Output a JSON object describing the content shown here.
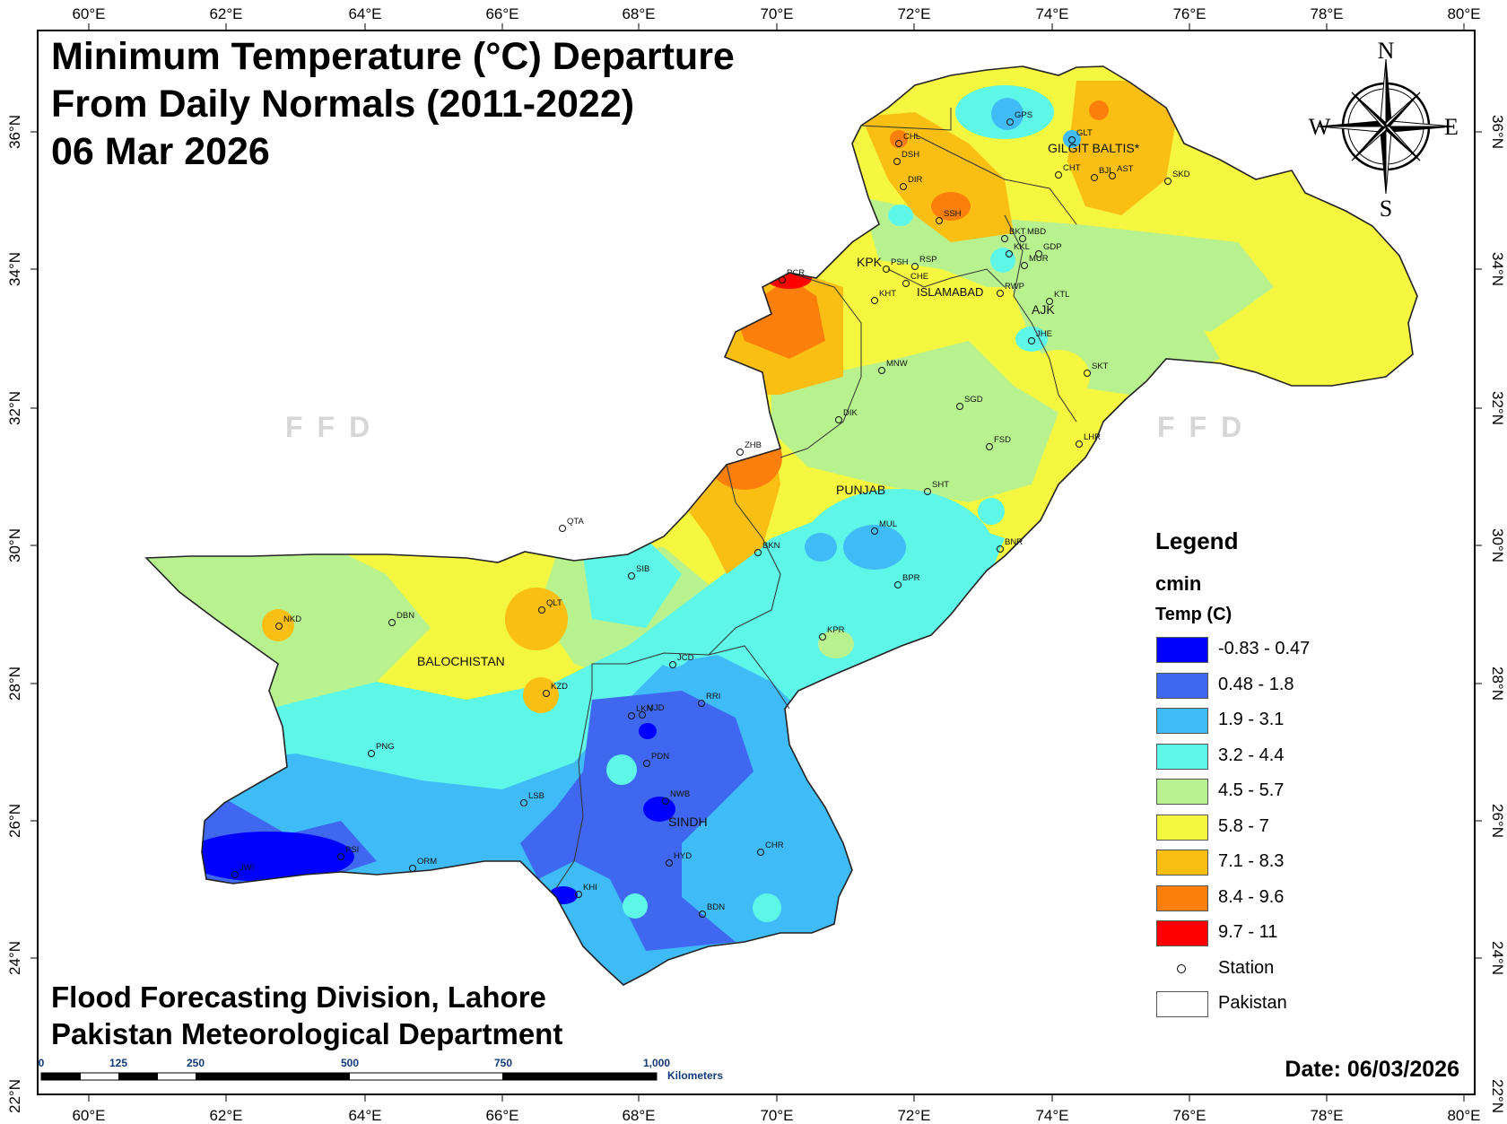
{
  "title": {
    "line1": "Minimum Temperature (°C) Departure",
    "line2": "From Daily Normals (2011-2022)",
    "line3": "06 Mar 2026"
  },
  "credits": {
    "line1": "Flood Forecasting Division, Lahore",
    "line2": "Pakistan Meteorological Department"
  },
  "date_label": "Date: 06/03/2026",
  "watermark": "FFD",
  "compass": {
    "n": "N",
    "s": "S",
    "e": "E",
    "w": "W"
  },
  "graticule": {
    "lon_labels": [
      "60°E",
      "62°E",
      "64°E",
      "66°E",
      "68°E",
      "70°E",
      "72°E",
      "74°E",
      "76°E",
      "78°E",
      "80°E"
    ],
    "lat_labels": [
      "24°N",
      "26°N",
      "28°N",
      "30°N",
      "32°N",
      "34°N",
      "36°N"
    ],
    "bottom_left_lat": "22°N",
    "right_extra_lat": "22°N"
  },
  "scale_bar": {
    "ticks": [
      "0",
      "125",
      "250",
      "500",
      "750",
      "1,000"
    ],
    "unit": "Kilometers"
  },
  "legend": {
    "title": "Legend",
    "layer": "cmin",
    "field": "Temp (C)",
    "classes": [
      {
        "label": "-0.83 - 0.47",
        "color": "#0000ff"
      },
      {
        "label": "0.48 - 1.8",
        "color": "#3f67f0"
      },
      {
        "label": "1.9 - 3.1",
        "color": "#3fbcf7"
      },
      {
        "label": "3.2 - 4.4",
        "color": "#5ef6e6"
      },
      {
        "label": "4.5 - 5.7",
        "color": "#b7f28f"
      },
      {
        "label": "5.8 - 7",
        "color": "#f4f63f"
      },
      {
        "label": "7.1 - 8.3",
        "color": "#fbbf14"
      },
      {
        "label": "8.4 - 9.6",
        "color": "#fb7f0a"
      },
      {
        "label": "9.7 - 11",
        "color": "#ff0000"
      }
    ],
    "station_label": "Station",
    "boundary_label": "Pakistan"
  },
  "regions": [
    "KPK",
    "ISLAMABAD",
    "AJK",
    "GILGIT BALTIS*",
    "PUNJAB",
    "BALOCHISTAN",
    "SINDH"
  ],
  "stations": [
    "CHL",
    "DSH",
    "DIR",
    "SSH",
    "GPS",
    "GLT",
    "CHT",
    "BJI",
    "AST",
    "SKD",
    "BKT",
    "MBD",
    "KKL",
    "GDP",
    "MUR",
    "PSH",
    "RSP",
    "CHE",
    "KHT",
    "RWP",
    "KTL",
    "JHE",
    "SKT",
    "MNW",
    "SGD",
    "DIK",
    "FSD",
    "LHR",
    "ZHB",
    "SHT",
    "QTA",
    "BKN",
    "MUL",
    "BNR",
    "SIB",
    "BPR",
    "NKD",
    "DBN",
    "QLT",
    "KPR",
    "KZD",
    "JCD",
    "RRI",
    "LKN",
    "MJD",
    "PNG",
    "PDN",
    "LSB",
    "NWB",
    "CHR",
    "HYD",
    "JWI",
    "PSI",
    "ORM",
    "KHI",
    "BDN",
    "PCR"
  ]
}
